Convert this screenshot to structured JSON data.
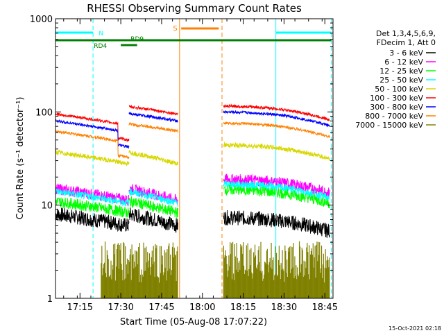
{
  "chart_data": {
    "type": "line",
    "title": "RHESSI Observing Summary Count Rates",
    "xlabel": "Start Time (05-Aug-08 17:07:22)",
    "ylabel": "Count Rate (s⁻¹ detector⁻¹)",
    "yscale": "log",
    "ylim": [
      1,
      1000
    ],
    "y_ticks": [
      "1",
      "10",
      "100",
      "1000"
    ],
    "x_range_minutes": [
      17.1,
      18.8
    ],
    "x_ticks": [
      "17:15",
      "17:30",
      "17:45",
      "18:00",
      "18:15",
      "18:30",
      "18:45"
    ],
    "x_tick_values": [
      17.25,
      17.5,
      17.75,
      18.0,
      18.25,
      18.5,
      18.75
    ],
    "legend_header": [
      "Det 1,3,4,5,6,9,",
      "FDecim 1, Att 0"
    ],
    "legend_position": "right",
    "series": [
      {
        "name": "3 - 6 keV",
        "color": "#000000",
        "level": 8,
        "level_late": 7
      },
      {
        "name": "6 - 12 keV",
        "color": "#ff00ff",
        "level": 15,
        "level_late": 18
      },
      {
        "name": "12 - 25 keV",
        "color": "#00ff00",
        "level": 11,
        "level_late": 14
      },
      {
        "name": "25 - 50 keV",
        "color": "#00ffff",
        "level": 14,
        "level_late": 16
      },
      {
        "name": "50 - 100 keV",
        "color": "#d7d700",
        "level": 37,
        "level_late": 42
      },
      {
        "name": "100 - 300 keV",
        "color": "#ff0000",
        "level": 95,
        "level_late": 110
      },
      {
        "name": "300 - 800 keV",
        "color": "#0000ff",
        "level": 80,
        "level_late": 95
      },
      {
        "name": "800 - 7000 keV",
        "color": "#ff8000",
        "level": 62,
        "level_late": 72
      },
      {
        "name": "7000 - 15000 keV",
        "color": "#808000",
        "level": 2,
        "level_late": 2
      }
    ],
    "observing_flags": {
      "N": {
        "label": "N",
        "color": "#00ffff"
      },
      "S": {
        "label": "S",
        "color": "#ff8000"
      },
      "RD4": {
        "label": "RD4",
        "color": "#008000"
      },
      "RD9": {
        "label": "RD9",
        "color": "#008000"
      }
    },
    "data_gap": [
      17.97,
      18.12
    ],
    "saa_interval": [
      17.86,
      18.12
    ],
    "night_intervals": [
      [
        17.1,
        17.33
      ],
      [
        18.45,
        18.8
      ]
    ]
  },
  "footer_timestamp": "15-Oct-2021 02:18"
}
